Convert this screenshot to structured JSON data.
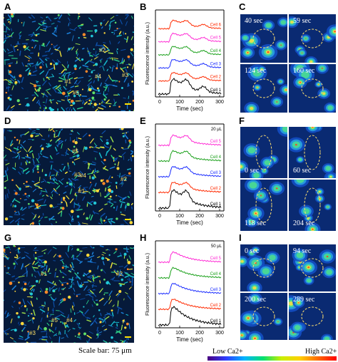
{
  "panels": {
    "A": {
      "letter": "A",
      "cell_marks": [
        "#1",
        "#2",
        "#3",
        "#4",
        "#5"
      ]
    },
    "B": {
      "letter": "B",
      "ylabel": "Fluorescence intensity (a.u.)",
      "xlabel": "Time (sec)",
      "xticks": [
        "0",
        "100",
        "200",
        "300"
      ],
      "series_labels": [
        "Cell 6",
        "Cell 5",
        "Cell 4",
        "Cell 3",
        "Cell 2",
        "Cell 1"
      ]
    },
    "C": {
      "letter": "C",
      "tiles": [
        "40 sec",
        "59 sec",
        "124 sec",
        "160 sec"
      ]
    },
    "D": {
      "letter": "D",
      "cell_marks": [
        "#1",
        "#2",
        "#3",
        "#4",
        "#5"
      ]
    },
    "E": {
      "letter": "E",
      "dose": "20 μL",
      "ylabel": "Fluorescence intensity (a.u.)",
      "xlabel": "Time (sec)",
      "xticks": [
        "0",
        "100",
        "200",
        "300"
      ],
      "series_labels": [
        "Cell 5",
        "Cell 4",
        "Cell 3",
        "Cell 2",
        "Cell 1"
      ]
    },
    "F": {
      "letter": "F",
      "tiles": [
        "0 sec",
        "60 sec",
        "118 sec",
        "204 sec"
      ]
    },
    "G": {
      "letter": "G",
      "cell_marks": [
        "#1",
        "#2",
        "#3",
        "#4",
        "#5"
      ]
    },
    "H": {
      "letter": "H",
      "dose": "50 μL",
      "ylabel": "Fluorescence intensity (a.u.)",
      "xlabel": "Time (sec)",
      "xticks": [
        "0",
        "100",
        "200",
        "300"
      ],
      "series_labels": [
        "Cell 5",
        "Cell 4",
        "Cell 3",
        "Cell 2",
        "Cell 1"
      ]
    },
    "I": {
      "letter": "I",
      "tiles": [
        "0 sec",
        "94 sec",
        "200 sec",
        "289 sec"
      ]
    }
  },
  "scale_bar": "Scale bar: 75 μm",
  "legend": {
    "low": "Low Ca2+",
    "high": "High Ca2+"
  },
  "colors": {
    "cell1": "#000000",
    "cell2": "#ff2a00",
    "cell3": "#1a2cff",
    "cell4": "#1aa01a",
    "cell5": "#ff2ad4",
    "cell6": "#ff2a00"
  }
}
